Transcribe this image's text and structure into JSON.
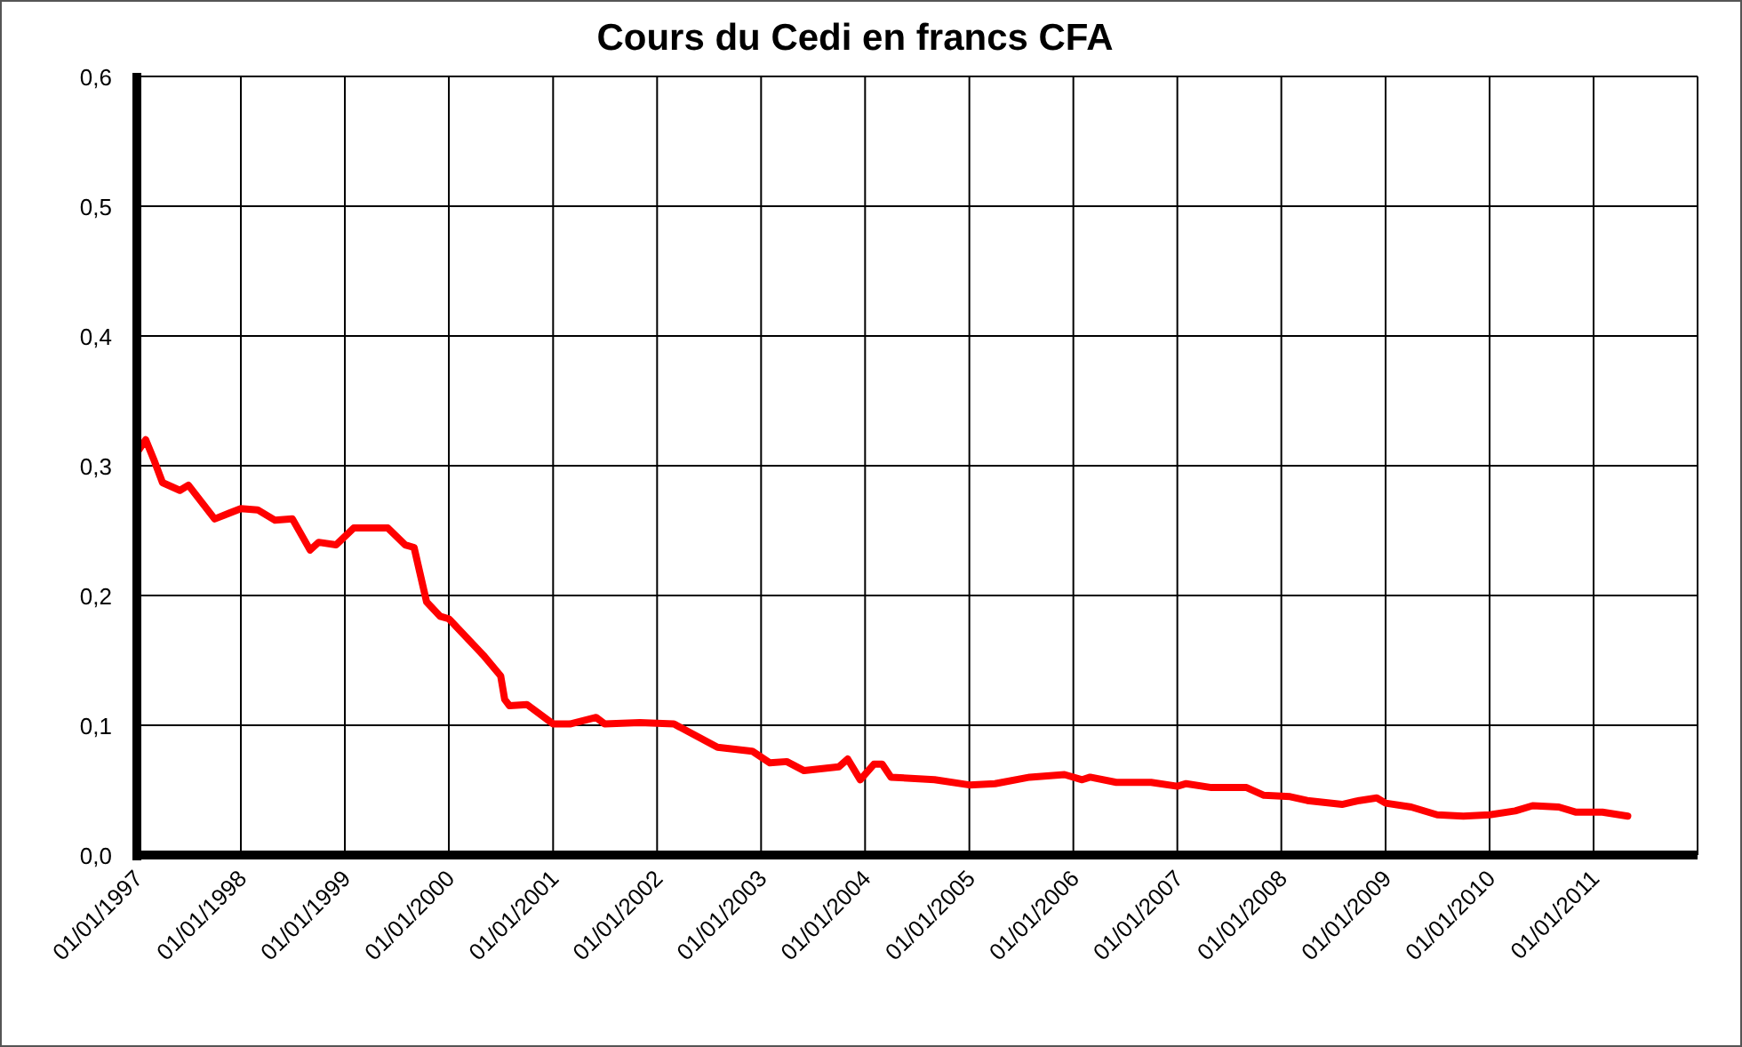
{
  "chart_data": {
    "type": "line",
    "title": "Cours du Cedi en francs CFA",
    "x": [
      "1997-01",
      "1997-02",
      "1997-03",
      "1997-04",
      "1997-06",
      "1997-07",
      "1997-10",
      "1998-01",
      "1998-03",
      "1998-05",
      "1998-07",
      "1998-09",
      "1998-10",
      "1998-12",
      "1999-02",
      "1999-06",
      "1999-08",
      "1999-09",
      "1999-10-15",
      "1999-12",
      "2000-01",
      "2000-04",
      "2000-05",
      "2000-07",
      "2000-07-15",
      "2000-08",
      "2000-10",
      "2001-01",
      "2001-03",
      "2001-06",
      "2001-07",
      "2001-11",
      "2002-03",
      "2002-08",
      "2002-12",
      "2003-02",
      "2003-04",
      "2003-06",
      "2003-10",
      "2003-11",
      "2003-12-15",
      "2004-02",
      "2004-03",
      "2004-04",
      "2004-09",
      "2005-01",
      "2005-04",
      "2005-08",
      "2005-12",
      "2006-02",
      "2006-03",
      "2006-06",
      "2006-10",
      "2007-01",
      "2007-02",
      "2007-05",
      "2007-09",
      "2007-11",
      "2008-02",
      "2008-04",
      "2008-08",
      "2008-10",
      "2008-12",
      "2009-01",
      "2009-04",
      "2009-07",
      "2009-10",
      "2010-01",
      "2010-04",
      "2010-06",
      "2010-09",
      "2010-11",
      "2011-02",
      "2011-05"
    ],
    "series": [
      {
        "color": "#ff0000",
        "values": [
          0.31,
          0.32,
          0.305,
          0.287,
          0.281,
          0.285,
          0.259,
          0.267,
          0.266,
          0.258,
          0.259,
          0.235,
          0.241,
          0.239,
          0.252,
          0.252,
          0.239,
          0.237,
          0.195,
          0.184,
          0.182,
          0.161,
          0.154,
          0.138,
          0.12,
          0.115,
          0.116,
          0.101,
          0.101,
          0.106,
          0.101,
          0.102,
          0.101,
          0.083,
          0.08,
          0.071,
          0.072,
          0.065,
          0.068,
          0.074,
          0.058,
          0.07,
          0.07,
          0.06,
          0.058,
          0.054,
          0.055,
          0.06,
          0.062,
          0.058,
          0.06,
          0.056,
          0.056,
          0.053,
          0.055,
          0.052,
          0.052,
          0.046,
          0.045,
          0.042,
          0.039,
          0.042,
          0.044,
          0.04,
          0.037,
          0.031,
          0.03,
          0.031,
          0.034,
          0.038,
          0.037,
          0.033,
          0.033,
          0.03
        ]
      }
    ],
    "xlim": [
      "1997-01-01",
      "2012-01-01"
    ],
    "xticks": [
      {
        "value": "1997-01-01",
        "label": "01/01/1997"
      },
      {
        "value": "1998-01-01",
        "label": "01/01/1998"
      },
      {
        "value": "1999-01-01",
        "label": "01/01/1999"
      },
      {
        "value": "2000-01-01",
        "label": "01/01/2000"
      },
      {
        "value": "2001-01-01",
        "label": "01/01/2001"
      },
      {
        "value": "2002-01-01",
        "label": "01/01/2002"
      },
      {
        "value": "2003-01-01",
        "label": "01/01/2003"
      },
      {
        "value": "2004-01-01",
        "label": "01/01/2004"
      },
      {
        "value": "2005-01-01",
        "label": "01/01/2005"
      },
      {
        "value": "2006-01-01",
        "label": "01/01/2006"
      },
      {
        "value": "2007-01-01",
        "label": "01/01/2007"
      },
      {
        "value": "2008-01-01",
        "label": "01/01/2008"
      },
      {
        "value": "2009-01-01",
        "label": "01/01/2009"
      },
      {
        "value": "2010-01-01",
        "label": "01/01/2010"
      },
      {
        "value": "2011-01-01",
        "label": "01/01/2011"
      },
      {
        "value": "2012-01-01",
        "label": null
      }
    ],
    "ylim": [
      0,
      0.6
    ],
    "yticks": [
      {
        "value": 0,
        "label": "0,0"
      },
      {
        "value": 0.1,
        "label": "0,1"
      },
      {
        "value": 0.2,
        "label": "0,2"
      },
      {
        "value": 0.3,
        "label": "0,3"
      },
      {
        "value": 0.4,
        "label": "0,4"
      },
      {
        "value": 0.5,
        "label": "0,5"
      },
      {
        "value": 0.6,
        "label": "0,6"
      }
    ],
    "grid": true,
    "marker": "none",
    "line_style": "solid"
  }
}
